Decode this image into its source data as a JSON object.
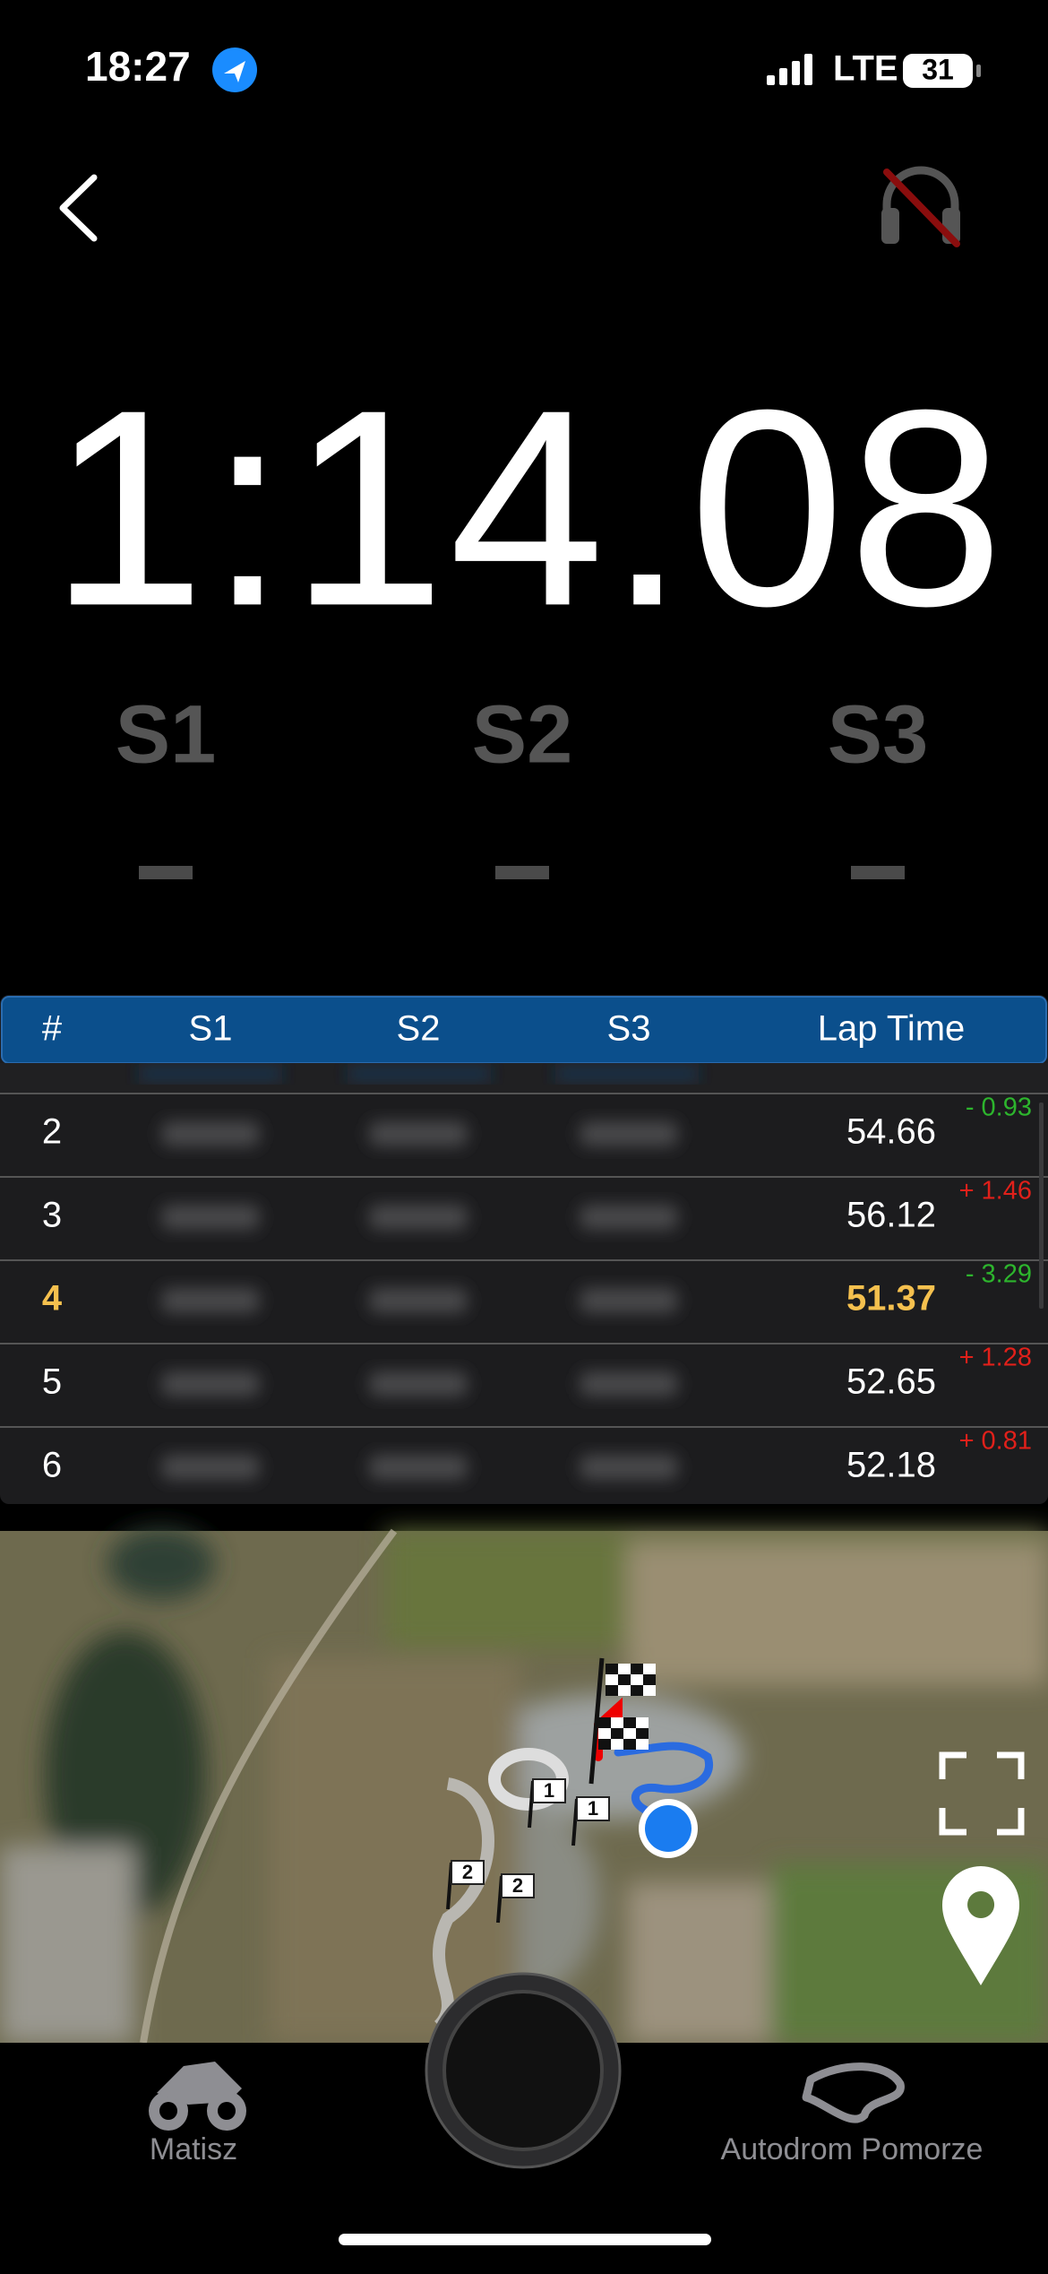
{
  "status_bar": {
    "time": "18:27",
    "network": "LTE",
    "battery": "31"
  },
  "timer": {
    "current_lap": "1:14.08",
    "sectors": [
      "S1",
      "S2",
      "S3"
    ]
  },
  "table": {
    "columns": [
      "#",
      "S1",
      "S2",
      "S3",
      "Lap Time"
    ],
    "rows": [
      {
        "lap": "2",
        "lap_time": "54.66",
        "delta": "- 0.93"
      },
      {
        "lap": "3",
        "lap_time": "56.12",
        "delta": "+ 1.46"
      },
      {
        "lap": "4",
        "lap_time": "51.37",
        "delta": "- 3.29",
        "best": true
      },
      {
        "lap": "5",
        "lap_time": "52.65",
        "delta": "+ 1.28"
      },
      {
        "lap": "6",
        "lap_time": "52.18",
        "delta": "+ 0.81"
      }
    ]
  },
  "map": {
    "markers": [
      "1",
      "1",
      "2",
      "2"
    ]
  },
  "tab_bar": {
    "vehicle": "Matisz",
    "track": "Autodrom Pomorze"
  }
}
